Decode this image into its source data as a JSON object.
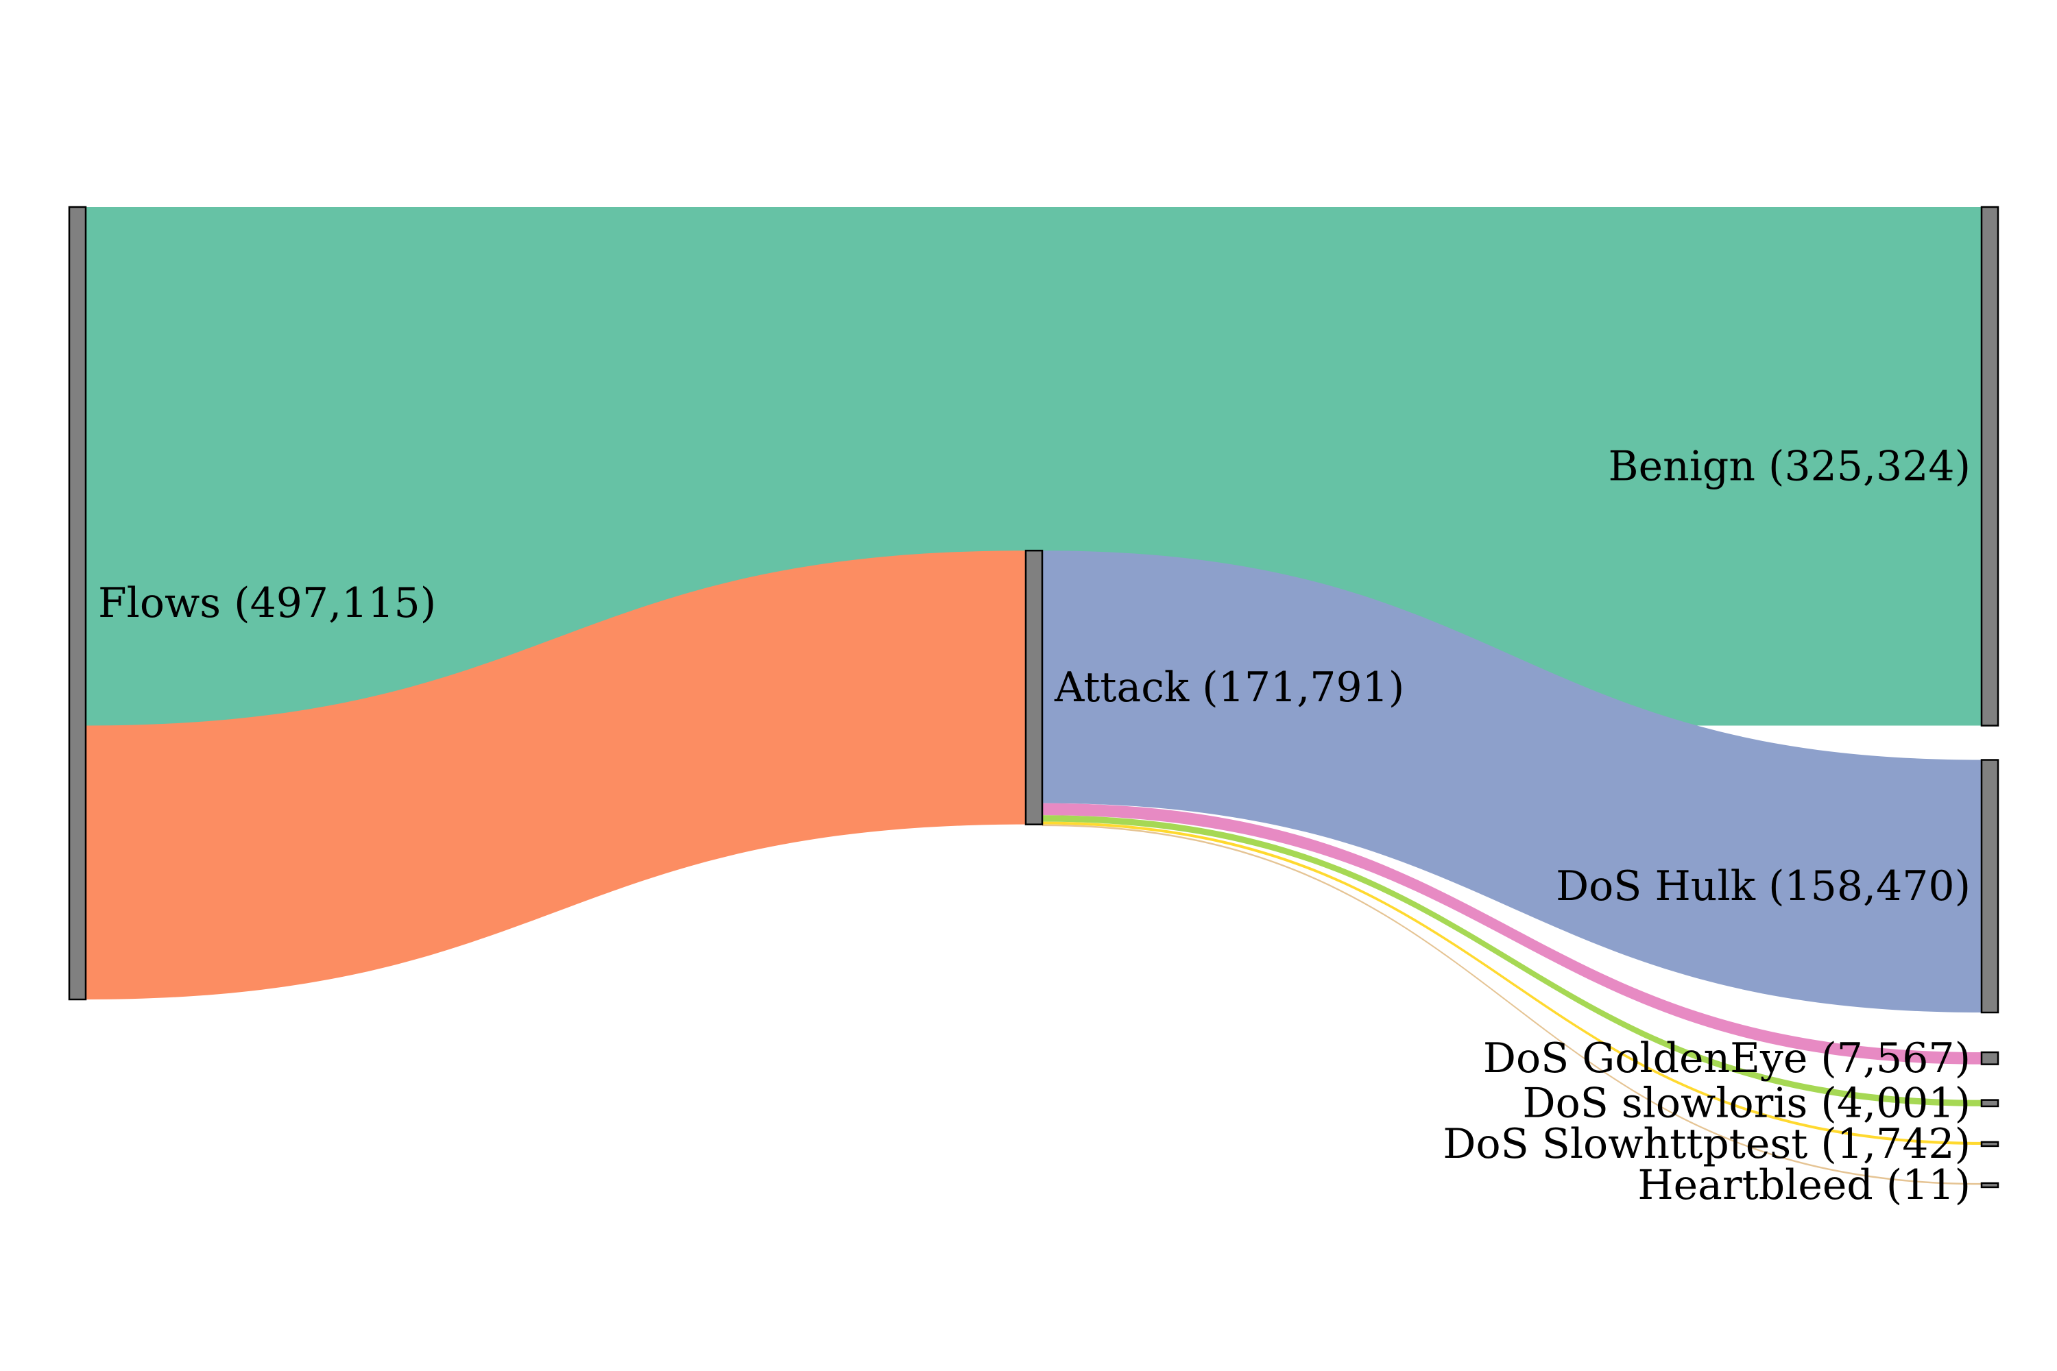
{
  "chart_data": {
    "type": "sankey",
    "title": "",
    "nodes": [
      {
        "id": "flows",
        "label": "Flows (497,115)",
        "value": 497115,
        "column": 0
      },
      {
        "id": "attack",
        "label": "Attack (171,791)",
        "value": 171791,
        "column": 1
      },
      {
        "id": "benign",
        "label": "Benign (325,324)",
        "value": 325324,
        "column": 2
      },
      {
        "id": "dos-hulk",
        "label": "DoS Hulk (158,470)",
        "value": 158470,
        "column": 2
      },
      {
        "id": "dos-goldeneye",
        "label": "DoS GoldenEye (7,567)",
        "value": 7567,
        "column": 2
      },
      {
        "id": "dos-slowloris",
        "label": "DoS slowloris (4,001)",
        "value": 4001,
        "column": 2
      },
      {
        "id": "dos-slowhttptest",
        "label": "DoS Slowhttptest (1,742)",
        "value": 1742,
        "column": 2
      },
      {
        "id": "heartbleed",
        "label": "Heartbleed (11)",
        "value": 11,
        "column": 2
      }
    ],
    "links": [
      {
        "source": "flows",
        "target": "benign",
        "value": 325324,
        "color": "#66c2a5"
      },
      {
        "source": "flows",
        "target": "attack",
        "value": 171791,
        "color": "#fc8d62"
      },
      {
        "source": "attack",
        "target": "dos-hulk",
        "value": 158470,
        "color": "#8da0cb"
      },
      {
        "source": "attack",
        "target": "dos-goldeneye",
        "value": 7567,
        "color": "#e78ac3"
      },
      {
        "source": "attack",
        "target": "dos-slowloris",
        "value": 4001,
        "color": "#a6d854"
      },
      {
        "source": "attack",
        "target": "dos-slowhttptest",
        "value": 1742,
        "color": "#ffd92f"
      },
      {
        "source": "attack",
        "target": "heartbleed",
        "value": 11,
        "color": "#e5c494"
      }
    ],
    "node_color": "#808080"
  }
}
